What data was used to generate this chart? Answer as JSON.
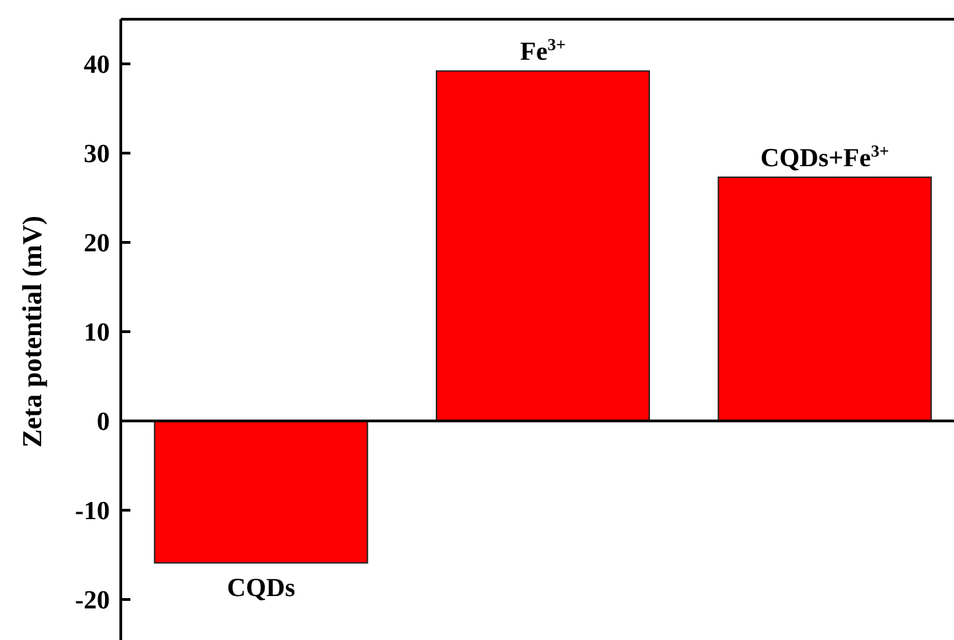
{
  "chart_data": {
    "type": "bar",
    "ylabel": "Zeta potential (mV)",
    "categories": [
      "CQDs",
      "Fe$^{3+}$",
      "CQDs+Fe$^{3+}$"
    ],
    "values": [
      -15.9,
      39.2,
      27.3
    ],
    "color": "#ff0000",
    "ylim": [
      -25,
      45
    ],
    "yticks": [
      -20,
      -10,
      0,
      10,
      20,
      30,
      40
    ]
  }
}
